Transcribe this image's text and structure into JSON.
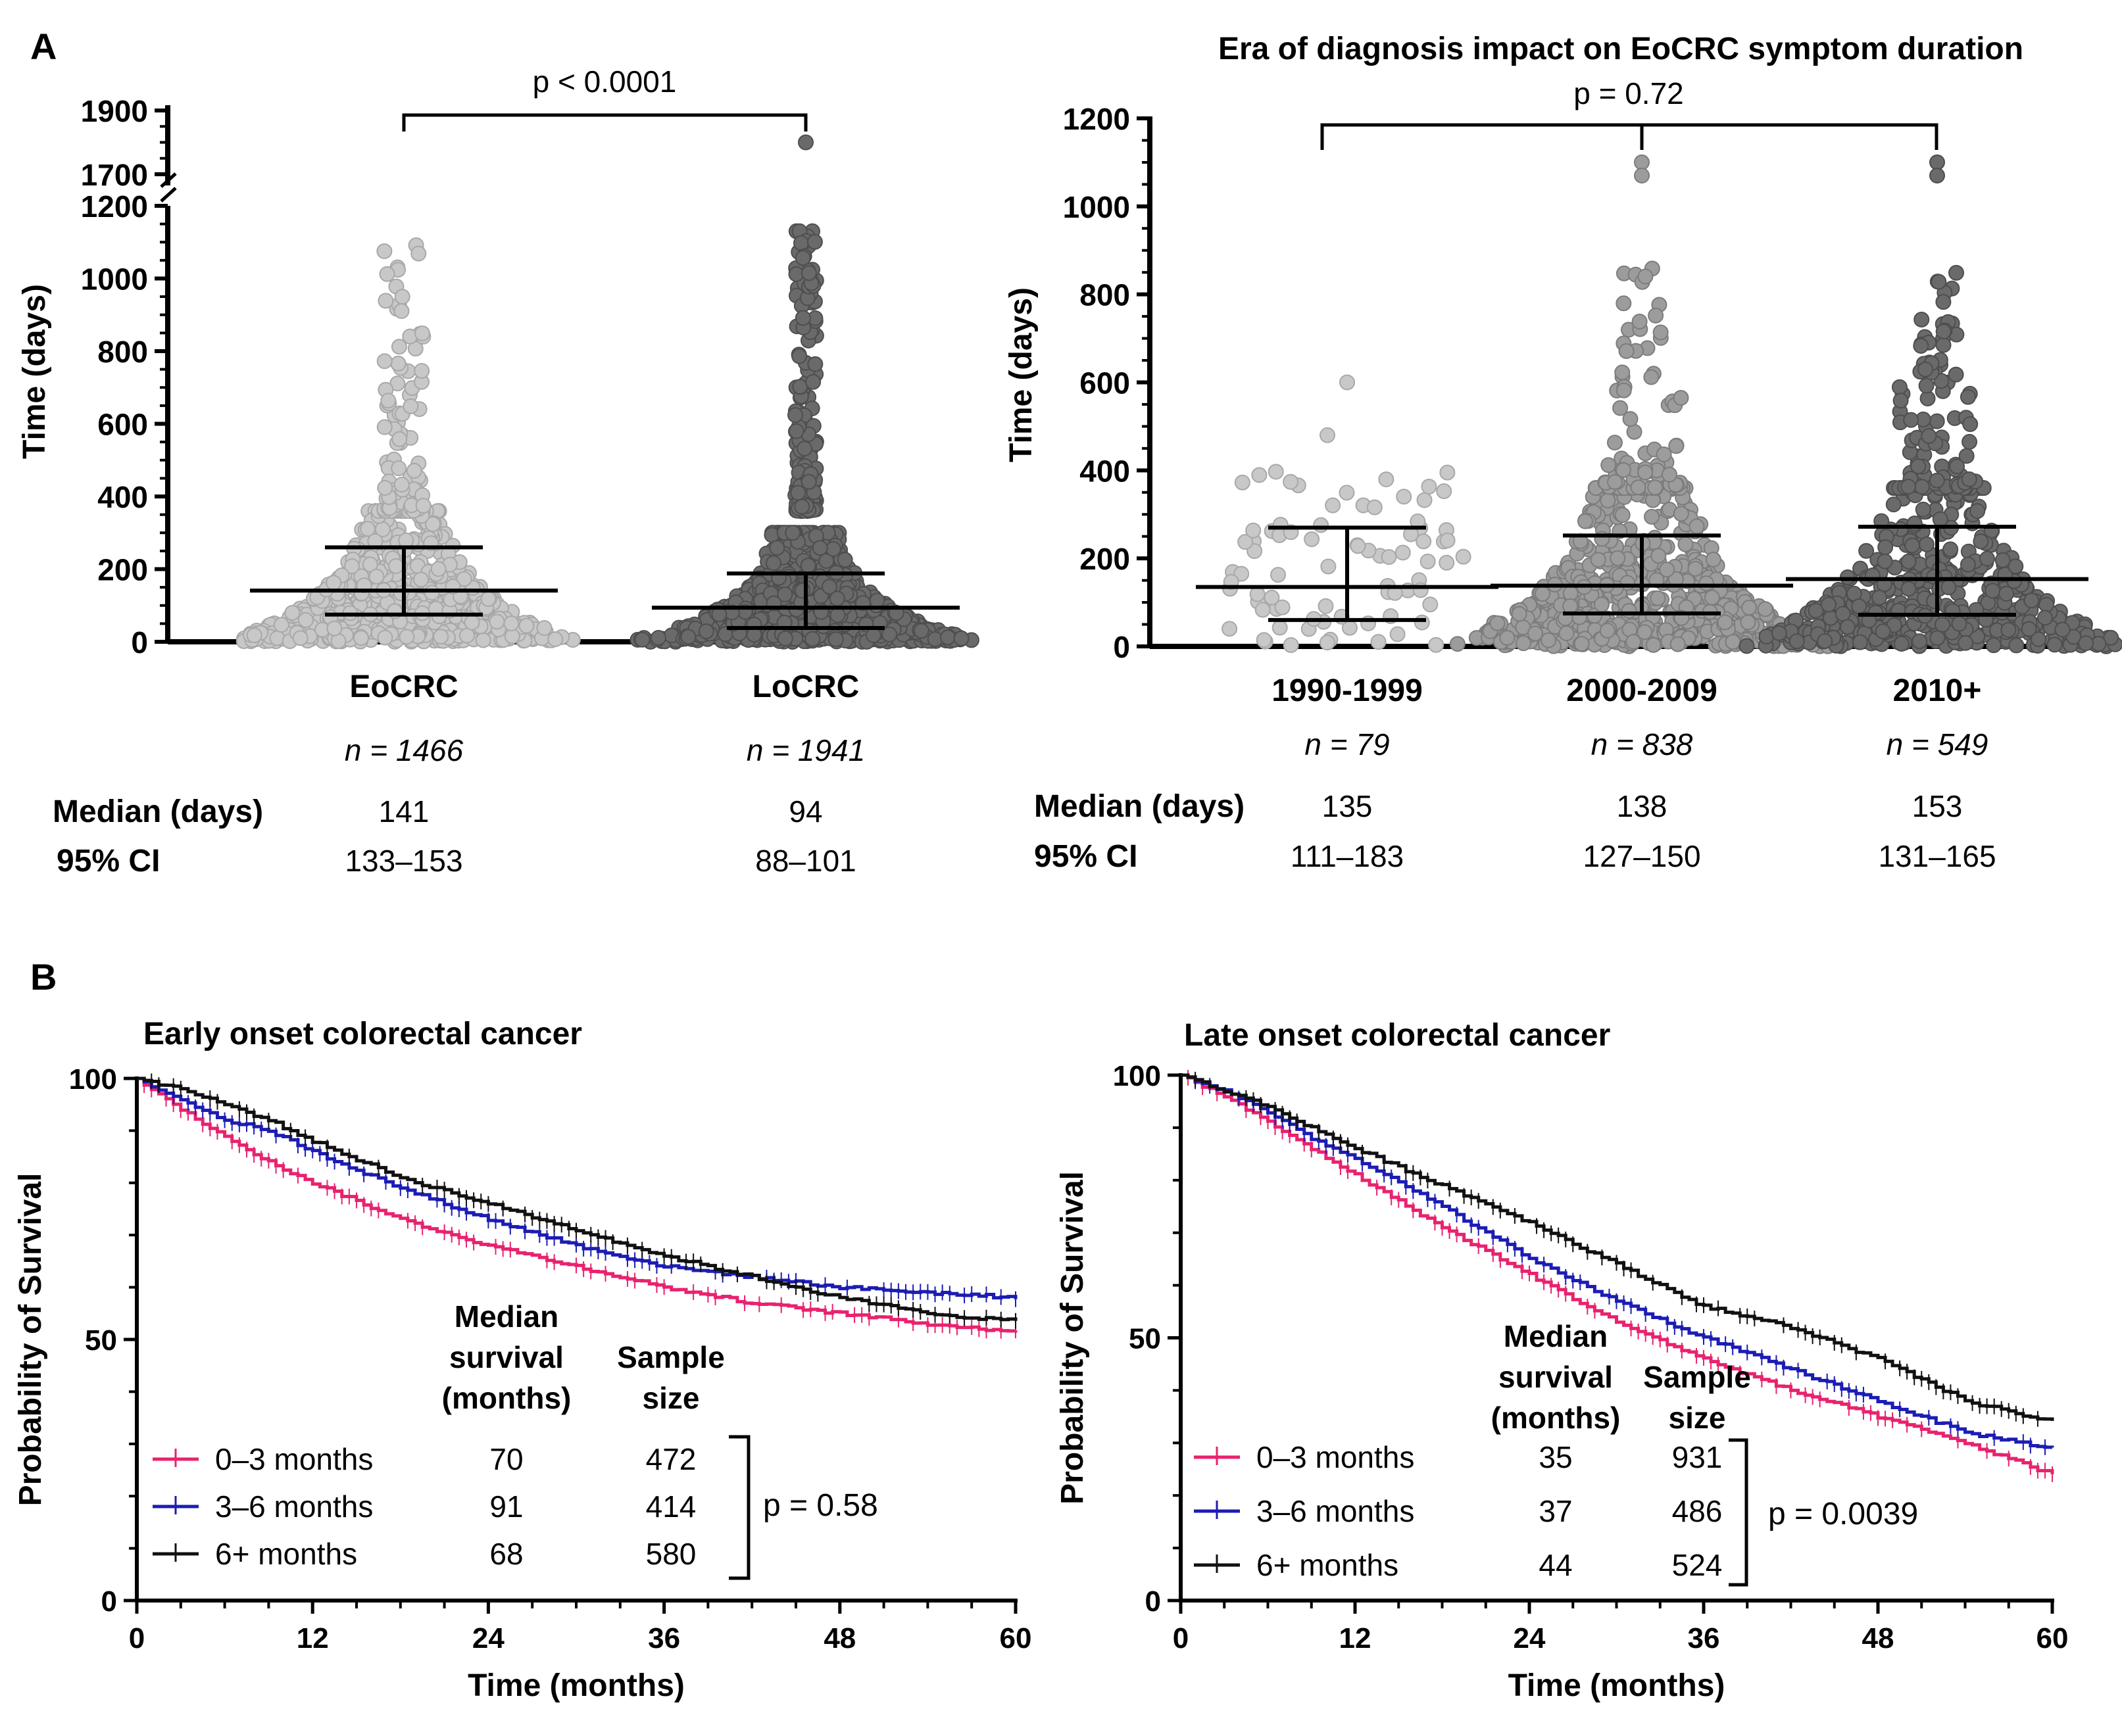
{
  "panels": {
    "a": "A",
    "b": "B"
  },
  "colors": {
    "light": "#c8c8c8",
    "medium": "#9c9c9c",
    "dark": "#6a6a6a",
    "pink": "#e8226f",
    "blue": "#1c1cb4",
    "black": "#111111"
  },
  "chart_data": [
    {
      "type": "scatter",
      "title": "",
      "panel": "A",
      "ylabel": "Time  (days)",
      "ylim_lower": [
        0,
        1200
      ],
      "ylim_upper": [
        1700,
        1900
      ],
      "yticks_lower": [
        "0",
        "200",
        "400",
        "600",
        "800",
        "1000",
        "1200"
      ],
      "yticks_upper": [
        "1700",
        "1900"
      ],
      "categories": [
        "EoCRC",
        "LoCRC"
      ],
      "n_labels": [
        "n = 1466",
        "n = 1941"
      ],
      "medians": [
        141,
        94
      ],
      "q1": [
        75,
        38
      ],
      "q3": [
        260,
        188
      ],
      "max_values": [
        1100,
        1800
      ],
      "comparison": "p < 0.0001",
      "table": {
        "median_label": "Median (days)",
        "ci_label": "95% CI",
        "median_values": [
          "141",
          "94"
        ],
        "ci_values": [
          "133–153",
          "88–101"
        ]
      }
    },
    {
      "type": "scatter",
      "title": "Era of diagnosis impact on EoCRC symptom duration",
      "panel": "A",
      "ylabel": "Time (days)",
      "ylim": [
        0,
        1200
      ],
      "yticks": [
        "0",
        "200",
        "400",
        "600",
        "800",
        "1000",
        "1200"
      ],
      "categories": [
        "1990-1999",
        "2000-2009",
        "2010+"
      ],
      "n_labels": [
        "n = 79",
        "n = 838",
        "n = 549"
      ],
      "medians": [
        135,
        138,
        153
      ],
      "q1": [
        60,
        75,
        72
      ],
      "q3": [
        270,
        252,
        272
      ],
      "max_values": [
        600,
        1100,
        1100
      ],
      "comparison": "p = 0.72",
      "table": {
        "median_label": "Median (days)",
        "ci_label": "95% CI",
        "median_values": [
          "135",
          "138",
          "153"
        ],
        "ci_values": [
          "111–183",
          "127–150",
          "131–165"
        ]
      }
    },
    {
      "type": "line",
      "title": "Early onset colorectal cancer",
      "panel": "B",
      "xlabel": "Time (months)",
      "ylabel": "Probability of Survival",
      "xlim": [
        0,
        60
      ],
      "ylim": [
        0,
        100
      ],
      "xticks": [
        "0",
        "12",
        "24",
        "36",
        "48",
        "60"
      ],
      "yticks": [
        "0",
        "50",
        "100"
      ],
      "x": [
        0,
        3,
        6,
        9,
        12,
        18,
        24,
        30,
        36,
        42,
        48,
        54,
        60
      ],
      "series": [
        {
          "name": "0–3 months",
          "median": "70",
          "n": "472",
          "values": [
            100,
            94,
            89,
            84,
            80,
            73,
            68,
            64,
            60,
            57,
            55,
            53,
            51.5
          ]
        },
        {
          "name": "3–6 months",
          "median": "91",
          "n": "414",
          "values": [
            100,
            96,
            92,
            90,
            86,
            79,
            73,
            68,
            64,
            62,
            60,
            59,
            58
          ]
        },
        {
          "name": "6+ months",
          "median": "68",
          "n": "580",
          "values": [
            100,
            98,
            95,
            92,
            88,
            81,
            76,
            71,
            66,
            62,
            58,
            55,
            53.5
          ]
        }
      ],
      "legend_headers": {
        "median": [
          "Median",
          "survival",
          "(months)"
        ],
        "sample": [
          "Sample",
          "size"
        ]
      },
      "p_value": "p = 0.58"
    },
    {
      "type": "line",
      "title": "Late onset colorectal cancer",
      "panel": "B",
      "xlabel": "Time (months)",
      "ylabel": "Probability of Survival",
      "xlim": [
        0,
        60
      ],
      "ylim": [
        0,
        100
      ],
      "xticks": [
        "0",
        "12",
        "24",
        "36",
        "48",
        "60"
      ],
      "yticks": [
        "0",
        "50",
        "100"
      ],
      "x": [
        0,
        3,
        6,
        9,
        12,
        18,
        24,
        30,
        36,
        42,
        48,
        54,
        60
      ],
      "series": [
        {
          "name": "0–3 months",
          "median": "35",
          "n": "931",
          "values": [
            100,
            96,
            91,
            86,
            81,
            71,
            62,
            53,
            46,
            40,
            35,
            30,
            24
          ]
        },
        {
          "name": "3–6 months",
          "median": "37",
          "n": "486",
          "values": [
            100,
            97,
            93,
            88,
            84,
            75,
            65,
            57,
            50,
            44,
            38,
            32,
            29
          ]
        },
        {
          "name": "6+ months",
          "median": "44",
          "n": "524",
          "values": [
            100,
            97,
            94,
            90,
            86,
            79,
            72,
            64,
            56,
            52,
            46,
            38,
            34
          ]
        }
      ],
      "legend_headers": {
        "median": [
          "Median",
          "survival",
          "(months)"
        ],
        "sample": [
          "Sample",
          "size"
        ]
      },
      "p_value": "p = 0.0039"
    }
  ]
}
